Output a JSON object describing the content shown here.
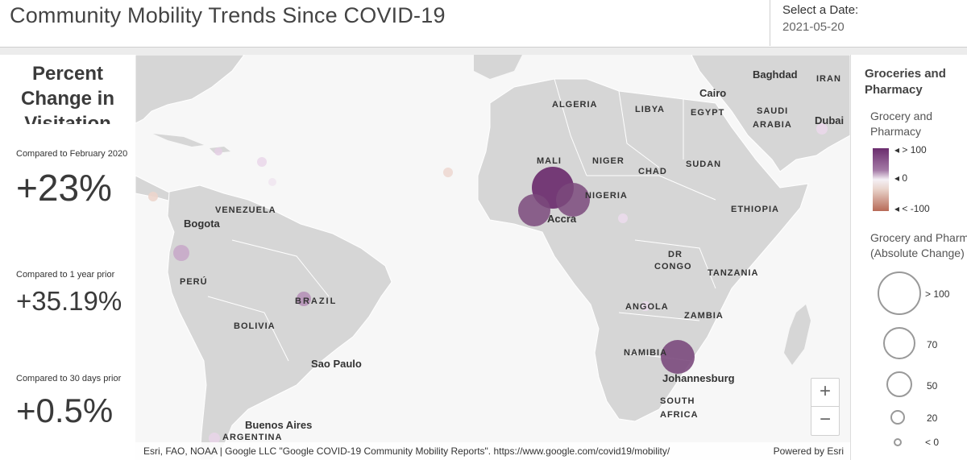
{
  "header": {
    "title": "Community Mobility Trends Since COVID-19",
    "date_label": "Select a Date:",
    "date_value": "2021-05-20"
  },
  "left_panel": {
    "title": "Percent Change in Visitation",
    "stats": [
      {
        "label": "Compared to February 2020",
        "value": "+23%"
      },
      {
        "label": "Compared to 1 year prior",
        "value": "+35.19%"
      },
      {
        "label": "Compared to 30 days prior",
        "value": "+0.5%"
      }
    ]
  },
  "map": {
    "labels": {
      "algeria": "ALGERIA",
      "libya": "LIBYA",
      "egypt": "EGYPT",
      "cairo": "Cairo",
      "baghdad": "Baghdad",
      "iran": "IRAN",
      "saudi": "SAUDI",
      "arabia": "ARABIA",
      "dubai": "Dubai",
      "mali": "MALI",
      "niger": "NIGER",
      "chad": "CHAD",
      "sudan": "SUDAN",
      "nigeria": "NIGERIA",
      "ethiopia": "ETHIOPIA",
      "accra": "Accra",
      "dr": "DR",
      "congo": "CONGO",
      "tanzania": "TANZANIA",
      "angola": "ANGOLA",
      "zambia": "ZAMBIA",
      "namibia": "NAMIBIA",
      "johannesburg": "Johannesburg",
      "south": "SOUTH",
      "africa": "AFRICA",
      "venezuela": "VENEZUELA",
      "bogota": "Bogota",
      "peru": "PERÚ",
      "brazil": "BRAZIL",
      "bolivia": "BOLIVIA",
      "sao_paulo": "Sao Paulo",
      "buenos_aires": "Buenos Aires",
      "argentina": "ARGENTINA"
    },
    "zoom_in": "+",
    "zoom_out": "−",
    "attribution": "Esri, FAO, NOAA | Google LLC \"Google COVID-19 Community Mobility Reports\". https://www.google.com/covid19/mobility/",
    "powered_by": "Powered by Esri",
    "colors": {
      "water": "#f7f7f7",
      "land": "#d6d6d6",
      "border": "#ffffff",
      "high": "#6b2d6e",
      "low": "#b76a57"
    }
  },
  "legend": {
    "title": "Groceries and Pharmacy",
    "color_title": "Grocery and Pharmacy",
    "color_stops": [
      "> 100",
      "0",
      "< -100"
    ],
    "size_title_line1": "Grocery and Pharmacy",
    "size_title_line2": "(Absolute Change)",
    "size_stops": [
      "> 100",
      "70",
      "50",
      "20",
      "< 0"
    ]
  }
}
